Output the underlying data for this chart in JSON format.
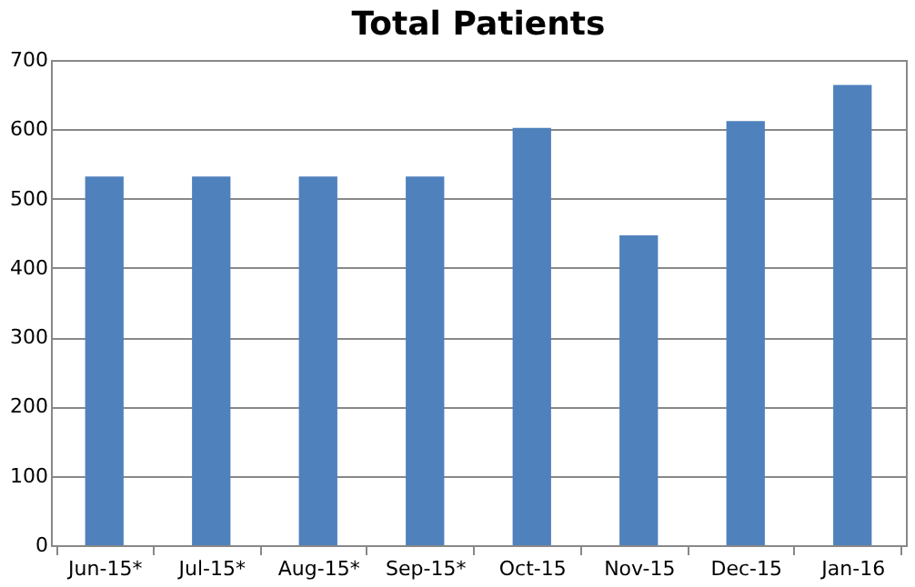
{
  "chart_data": {
    "type": "bar",
    "title": "Total Patients",
    "categories": [
      "Jun-15*",
      "Jul-15*",
      "Aug-15*",
      "Sep-15*",
      "Oct-15",
      "Nov-15",
      "Dec-15",
      "Jan-16"
    ],
    "values": [
      532,
      532,
      532,
      532,
      602,
      447,
      612,
      664
    ],
    "color": "#4f81bd",
    "ylim": [
      0,
      700
    ],
    "yticks": [
      0,
      100,
      200,
      300,
      400,
      500,
      600,
      700
    ],
    "grid": "y"
  }
}
